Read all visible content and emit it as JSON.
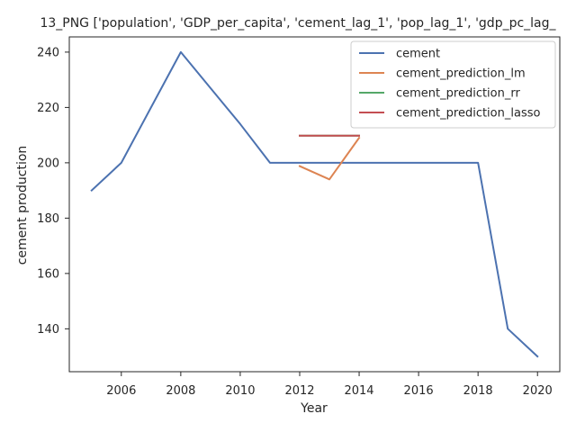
{
  "chart_data": {
    "type": "line",
    "title": "13_PNG ['population', 'GDP_per_capita', 'cement_lag_1', 'pop_lag_1', 'gdp_pc_lag_",
    "xlabel": "Year",
    "ylabel": "cement production",
    "xlim": [
      2004.25,
      2020.75
    ],
    "ylim": [
      124.5,
      245.5
    ],
    "xticks": [
      2006,
      2008,
      2010,
      2012,
      2014,
      2016,
      2018,
      2020
    ],
    "yticks": [
      140,
      160,
      180,
      200,
      220,
      240
    ],
    "grid": false,
    "legend_position": "top-right",
    "series": [
      {
        "name": "cement",
        "color": "#4c72b0",
        "x": [
          2005,
          2006,
          2007,
          2008,
          2009,
          2010,
          2011,
          2012,
          2013,
          2014,
          2015,
          2016,
          2017,
          2018,
          2019,
          2020
        ],
        "y": [
          190,
          200,
          220,
          240,
          227,
          214,
          200,
          200,
          200,
          200,
          200,
          200,
          200,
          200,
          140,
          130
        ]
      },
      {
        "name": "cement_prediction_lm",
        "color": "#dd8452",
        "x": [
          2012,
          2013,
          2014
        ],
        "y": [
          198.8,
          194,
          209
        ]
      },
      {
        "name": "cement_prediction_rr",
        "color": "#55a868",
        "x": [
          2012,
          2013,
          2014
        ],
        "y": [
          209.8,
          209.8,
          209.8
        ]
      },
      {
        "name": "cement_prediction_lasso",
        "color": "#c44e52",
        "x": [
          2012,
          2013,
          2014
        ],
        "y": [
          209.8,
          209.8,
          209.8
        ]
      }
    ]
  }
}
